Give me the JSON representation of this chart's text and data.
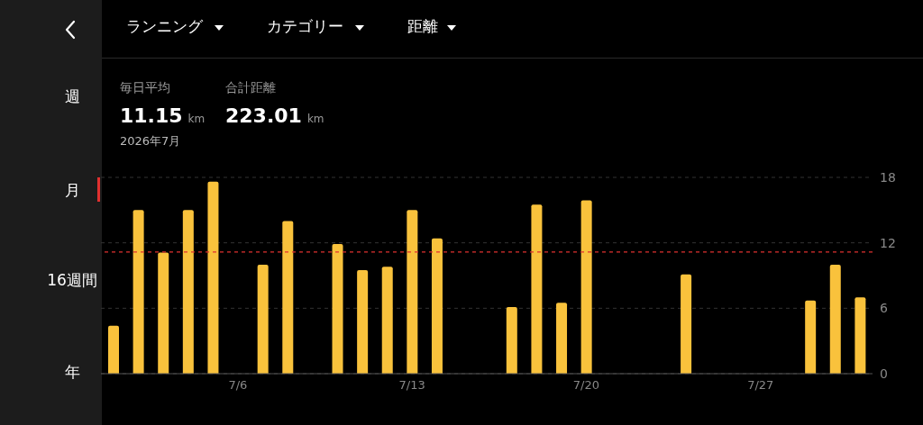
{
  "chart_data": {
    "type": "bar",
    "categories": [
      null,
      null,
      null,
      null,
      null,
      "7/6",
      null,
      null,
      null,
      null,
      null,
      null,
      "7/13",
      null,
      null,
      null,
      null,
      null,
      null,
      "7/20",
      null,
      null,
      null,
      null,
      null,
      null,
      "7/27",
      null,
      null,
      null,
      null
    ],
    "values": [
      4.4,
      15.0,
      11.1,
      15.0,
      17.6,
      null,
      10.0,
      14.0,
      null,
      11.9,
      9.5,
      9.8,
      15.0,
      12.4,
      null,
      null,
      6.1,
      15.5,
      6.5,
      15.9,
      null,
      null,
      null,
      9.1,
      null,
      null,
      null,
      null,
      6.7,
      10.0,
      7.0
    ],
    "color": "#f9c23c",
    "ylim": [
      0,
      18
    ],
    "yticks": [
      0,
      6,
      12,
      18
    ],
    "grid": "y",
    "ref_lines": [
      {
        "axis": "y",
        "value": 11.15,
        "color": "#e0302f",
        "line_style": "dashed"
      }
    ],
    "annotations": [
      "ランニング",
      "カテゴリー",
      "距離",
      "週",
      "月",
      "16週間",
      "年",
      "毎日平均",
      "11.15",
      "km",
      "合計距離",
      "223.01",
      "km",
      "2026年7月"
    ]
  }
}
